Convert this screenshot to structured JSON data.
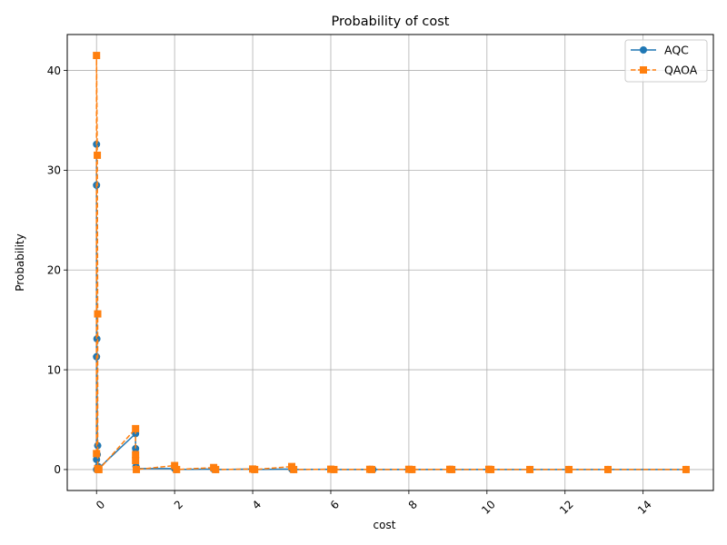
{
  "chart_data": {
    "type": "line",
    "title": "Probability of cost",
    "xlabel": "cost",
    "ylabel": "Probability",
    "xlim": [
      -0.75,
      15.8
    ],
    "ylim": [
      -2.1,
      43.6
    ],
    "xticks": [
      0,
      2,
      4,
      6,
      8,
      10,
      12,
      14
    ],
    "yticks": [
      0,
      10,
      20,
      30,
      40
    ],
    "xtick_rotation": 45,
    "grid": true,
    "legend": "top-right",
    "series": [
      {
        "name": "AQC",
        "color": "#1f77b4",
        "linestyle": "solid",
        "marker": "circle",
        "x": [
          0.0,
          0.0,
          0.0,
          0.0,
          0.0,
          0.01,
          0.02,
          0.03,
          0.03,
          0.04,
          0.05,
          1.0,
          1.0,
          1.01,
          1.02,
          2.0,
          2.03,
          3.0,
          3.05,
          4.0,
          4.05,
          5.0,
          5.05,
          6.0,
          6.08,
          7.0,
          7.08,
          8.0,
          8.08,
          9.05,
          9.1,
          10.05,
          10.1,
          11.1,
          12.1,
          13.1,
          15.1
        ],
        "y": [
          0.0,
          1.0,
          11.3,
          32.6,
          28.5,
          13.1,
          1.5,
          2.4,
          0.2,
          0.3,
          0.1,
          3.6,
          2.1,
          0.3,
          0.1,
          0.1,
          0.0,
          0.05,
          0.0,
          0.05,
          0.0,
          0.05,
          0.0,
          0.03,
          0.0,
          0.02,
          0.0,
          0.02,
          0.0,
          0.02,
          0.0,
          0.02,
          0.0,
          0.0,
          0.0,
          0.0,
          0.0
        ]
      },
      {
        "name": "QAOA",
        "color": "#ff7f0e",
        "linestyle": "dashed",
        "marker": "square",
        "x": [
          0.0,
          0.0,
          0.02,
          0.03,
          0.03,
          0.05,
          0.06,
          1.0,
          1.0,
          1.0,
          1.02,
          2.0,
          2.05,
          3.0,
          3.05,
          4.0,
          4.05,
          5.0,
          5.05,
          6.0,
          6.08,
          7.0,
          7.05,
          8.0,
          8.08,
          9.05,
          9.1,
          10.05,
          10.1,
          11.1,
          12.1,
          13.1,
          15.1
        ],
        "y": [
          1.6,
          41.5,
          31.5,
          15.6,
          0.1,
          0.0,
          0.0,
          4.1,
          1.5,
          0.9,
          0.0,
          0.4,
          0.0,
          0.2,
          0.0,
          0.05,
          0.0,
          0.3,
          0.0,
          0.03,
          0.0,
          0.02,
          0.0,
          0.02,
          0.0,
          0.02,
          0.0,
          0.02,
          0.0,
          0.0,
          0.0,
          0.0,
          0.0
        ]
      }
    ]
  }
}
